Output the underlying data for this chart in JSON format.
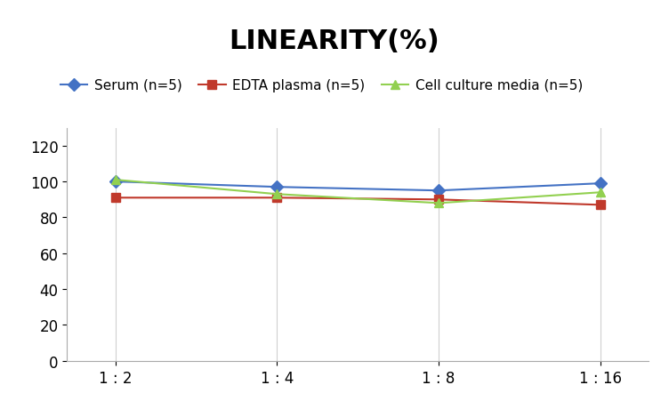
{
  "title": "LINEARITY(%)",
  "x_labels": [
    "1 : 2",
    "1 : 4",
    "1 : 8",
    "1 : 16"
  ],
  "series": [
    {
      "label": "Serum (n=5)",
      "values": [
        100,
        97,
        95,
        99
      ],
      "color": "#4472C4",
      "marker": "D",
      "linestyle": "-"
    },
    {
      "label": "EDTA plasma (n=5)",
      "values": [
        91,
        91,
        90,
        87
      ],
      "color": "#C0392B",
      "marker": "s",
      "linestyle": "-"
    },
    {
      "label": "Cell culture media (n=5)",
      "values": [
        101,
        93,
        88,
        94
      ],
      "color": "#92D050",
      "marker": "^",
      "linestyle": "-"
    }
  ],
  "ylim": [
    0,
    130
  ],
  "yticks": [
    0,
    20,
    40,
    60,
    80,
    100,
    120
  ],
  "title_fontsize": 22,
  "legend_fontsize": 11,
  "tick_fontsize": 12,
  "background_color": "#ffffff",
  "grid_color": "#d0d0d0"
}
